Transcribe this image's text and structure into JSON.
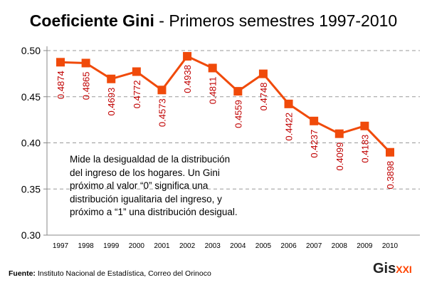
{
  "chart_data": {
    "type": "line",
    "title_bold": "Coeficiente Gini",
    "title_rest": " - Primeros semestres 1997-2010",
    "categories": [
      "1997",
      "1998",
      "1999",
      "2000",
      "2001",
      "2002",
      "2003",
      "2004",
      "2005",
      "2006",
      "2007",
      "2008",
      "2009",
      "2010"
    ],
    "values": [
      0.4874,
      0.4865,
      0.4693,
      0.4772,
      0.4573,
      0.4938,
      0.4811,
      0.4559,
      0.4748,
      0.4422,
      0.4237,
      0.4099,
      0.4183,
      0.3898
    ],
    "data_labels": [
      "0.4874",
      "0.4865",
      "0.4693",
      "0.4772",
      "0.4573",
      "0.4938",
      "0.4811",
      "0.4559",
      "0.4748",
      "0.4422",
      "0.4237",
      "0.4099",
      "0.4183",
      "0.3898"
    ],
    "yticks": [
      "0.30",
      "0.35",
      "0.40",
      "0.45",
      "0.50"
    ],
    "ylim": [
      0.3,
      0.5
    ],
    "grid": "horizontal dashed",
    "line_color": "#f04a0a",
    "label_color": "#c00000",
    "annotation": "Mide la desigualdad de la distribución del ingreso de los hogares. Un Gini próximo al valor “0” significa una distribución igualitaria del ingreso, y próximo a “1” una distribución desigual."
  },
  "source_label": "Fuente:",
  "source_text": " Instituto Nacional de Estadística, Correo del Orinoco",
  "logo": {
    "main": "Gis",
    "accent": "XXI"
  }
}
